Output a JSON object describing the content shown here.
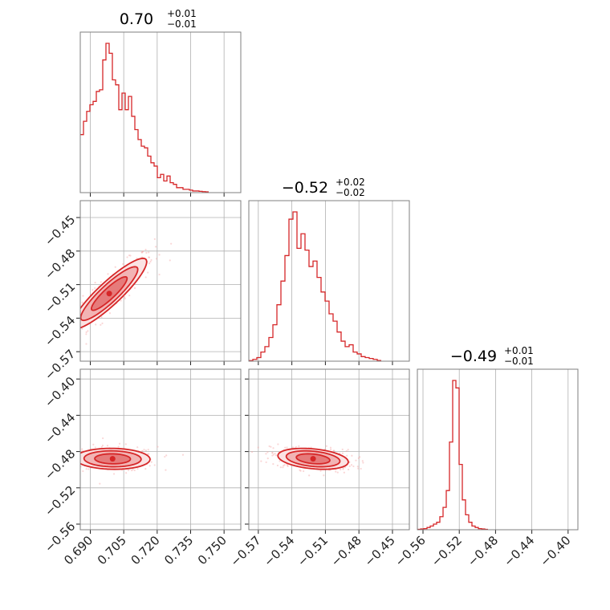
{
  "chart_data": {
    "type": "corner",
    "color": "#d62728",
    "parameters": [
      {
        "title_main": "0.70",
        "title_plus": "+0.01",
        "title_minus": "−0.01",
        "range": [
          0.6855,
          0.7575
        ]
      },
      {
        "title_main": "−0.52",
        "title_plus": "+0.02",
        "title_minus": "−0.02",
        "range": [
          -0.5785,
          -0.4349
        ]
      },
      {
        "title_main": "−0.49",
        "title_plus": "+0.01",
        "title_minus": "−0.01",
        "range": [
          -0.5662,
          -0.3892
        ]
      }
    ],
    "x_ticks": [
      {
        "values": [
          0.69,
          0.705,
          0.72,
          0.735,
          0.75
        ],
        "labels": [
          "0.690",
          "0.705",
          "0.720",
          "0.735",
          "0.750"
        ]
      },
      {
        "values": [
          -0.57,
          -0.54,
          -0.51,
          -0.48,
          -0.45
        ],
        "labels": [
          "−0.57",
          "−0.54",
          "−0.51",
          "−0.48",
          "−0.45"
        ]
      },
      {
        "values": [
          -0.56,
          -0.52,
          -0.48,
          -0.44,
          -0.4
        ],
        "labels": [
          "−0.56",
          "−0.52",
          "−0.48",
          "−0.44",
          "−0.40"
        ]
      }
    ],
    "y_ticks": [
      null,
      {
        "values": [
          -0.45,
          -0.48,
          -0.51,
          -0.54,
          -0.57
        ],
        "labels": [
          "−0.45",
          "−0.48",
          "−0.51",
          "−0.54",
          "−0.57"
        ]
      },
      {
        "values": [
          -0.4,
          -0.44,
          -0.48,
          -0.52,
          -0.56
        ],
        "labels": [
          "−0.40",
          "−0.44",
          "−0.48",
          "−0.52",
          "−0.56"
        ]
      }
    ],
    "histograms": [
      {
        "edges_start": 0.6855,
        "bin_width": 0.00144,
        "counts": [
          0.35,
          0.43,
          0.49,
          0.53,
          0.55,
          0.61,
          0.62,
          0.8,
          0.9,
          0.84,
          0.68,
          0.65,
          0.5,
          0.6,
          0.5,
          0.58,
          0.46,
          0.38,
          0.32,
          0.28,
          0.27,
          0.22,
          0.18,
          0.16,
          0.09,
          0.11,
          0.07,
          0.1,
          0.06,
          0.05,
          0.03,
          0.03,
          0.02,
          0.02,
          0.015,
          0.01,
          0.01,
          0.008,
          0.006,
          0.005
        ]
      },
      {
        "edges_start": -0.5785,
        "bin_width": 0.00359,
        "counts": [
          0.003,
          0.01,
          0.02,
          0.05,
          0.08,
          0.13,
          0.2,
          0.31,
          0.44,
          0.58,
          0.78,
          0.82,
          0.62,
          0.7,
          0.61,
          0.52,
          0.55,
          0.46,
          0.38,
          0.33,
          0.26,
          0.22,
          0.16,
          0.11,
          0.08,
          0.09,
          0.05,
          0.04,
          0.025,
          0.02,
          0.015,
          0.01,
          0.004
        ]
      },
      {
        "edges_start": -0.5662,
        "bin_width": 0.00354,
        "counts": [
          0.002,
          0.004,
          0.006,
          0.012,
          0.02,
          0.03,
          0.04,
          0.07,
          0.12,
          0.21,
          0.47,
          0.8,
          0.76,
          0.35,
          0.16,
          0.08,
          0.04,
          0.02,
          0.012,
          0.006,
          0.004,
          0.002
        ]
      }
    ],
    "joint": [
      {
        "x_param": 0,
        "y_param": 1,
        "mean": [
          0.6985,
          -0.518
        ],
        "std": [
          0.008,
          0.015
        ],
        "corr": 0.9
      },
      {
        "x_param": 0,
        "y_param": 2,
        "mean": [
          0.7,
          -0.488
        ],
        "std": [
          0.008,
          0.0055
        ],
        "corr": -0.05
      },
      {
        "x_param": 1,
        "y_param": 2,
        "mean": [
          -0.521,
          -0.488
        ],
        "std": [
          0.015,
          0.0055
        ],
        "corr": -0.3
      }
    ],
    "contour_levels_sigma": [
      1.0,
      1.6,
      2.1
    ],
    "grid": true
  }
}
